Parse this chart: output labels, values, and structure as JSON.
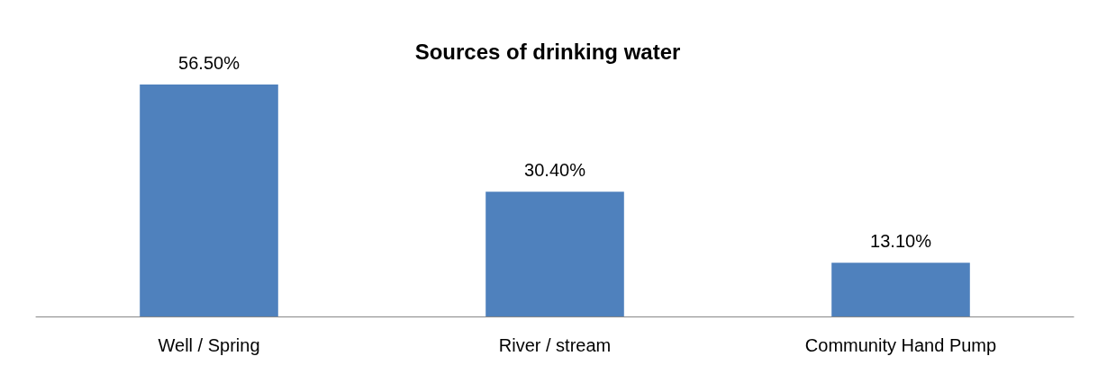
{
  "chart_data": {
    "type": "bar",
    "title": "Sources of drinking water",
    "categories": [
      "Well / Spring",
      "River / stream",
      "Community Hand Pump"
    ],
    "values": [
      56.5,
      30.4,
      13.1
    ],
    "value_labels": [
      "56.50%",
      "30.40%",
      "13.10%"
    ],
    "color": "#4f81bd"
  }
}
